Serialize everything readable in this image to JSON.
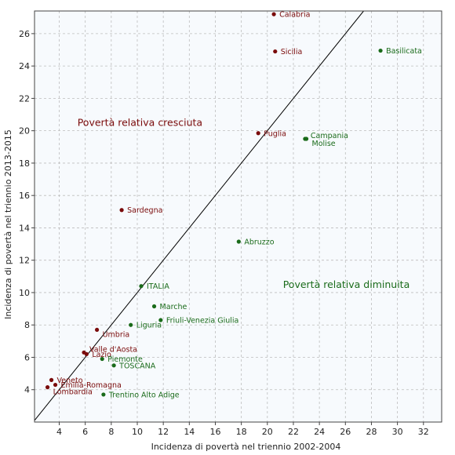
{
  "chart_data": {
    "type": "scatter",
    "title": "",
    "xlabel": "Incidenza di povertà nel triennio 2002-2004",
    "ylabel": "Incidenza di povertà nel triennio 2013-2015",
    "xlim": [
      2.1,
      33.4
    ],
    "ylim": [
      2.0,
      27.4
    ],
    "xticks": [
      4,
      6,
      8,
      10,
      12,
      14,
      16,
      18,
      20,
      22,
      24,
      26,
      28,
      30,
      32
    ],
    "yticks": [
      4,
      6,
      8,
      10,
      12,
      14,
      16,
      18,
      20,
      22,
      24,
      26
    ],
    "grid": true,
    "diagonal": {
      "from": [
        2.0,
        2.0
      ],
      "to": [
        27.4,
        27.4
      ]
    },
    "colors": {
      "increased": "#7a0b0b",
      "decreased": "#1a6b1a",
      "line": "#000000",
      "plot_bg": "#f7fafd",
      "grid": "#bdbdbd"
    },
    "points": [
      {
        "name": "Calabria",
        "x": 20.5,
        "y": 27.2,
        "group": "increased",
        "anchor": "right"
      },
      {
        "name": "Sicilia",
        "x": 20.6,
        "y": 24.9,
        "group": "increased",
        "anchor": "right"
      },
      {
        "name": "Basilicata",
        "x": 28.7,
        "y": 24.95,
        "group": "decreased",
        "anchor": "right"
      },
      {
        "name": "Puglia",
        "x": 19.3,
        "y": 19.85,
        "group": "increased",
        "anchor": "right"
      },
      {
        "name": "Campania",
        "x": 22.9,
        "y": 19.5,
        "group": "decreased",
        "anchor": "right-up"
      },
      {
        "name": "Molise",
        "x": 23.0,
        "y": 19.5,
        "group": "decreased",
        "anchor": "right-down"
      },
      {
        "name": "Sardegna",
        "x": 8.8,
        "y": 15.1,
        "group": "increased",
        "anchor": "right"
      },
      {
        "name": "Abruzzo",
        "x": 17.8,
        "y": 13.15,
        "group": "decreased",
        "anchor": "right"
      },
      {
        "name": "ITALIA",
        "x": 10.3,
        "y": 10.4,
        "group": "decreased",
        "anchor": "right"
      },
      {
        "name": "Marche",
        "x": 11.3,
        "y": 9.15,
        "group": "decreased",
        "anchor": "right"
      },
      {
        "name": "Friuli-Venezia Giulia",
        "x": 11.8,
        "y": 8.3,
        "group": "decreased",
        "anchor": "right"
      },
      {
        "name": "Liguria",
        "x": 9.5,
        "y": 8.0,
        "group": "decreased",
        "anchor": "right"
      },
      {
        "name": "Umbria",
        "x": 6.9,
        "y": 7.7,
        "group": "increased",
        "anchor": "right-down"
      },
      {
        "name": "Valle d'Aosta",
        "x": 5.9,
        "y": 6.3,
        "group": "increased",
        "anchor": "right-up"
      },
      {
        "name": "Lazio",
        "x": 6.1,
        "y": 6.2,
        "group": "increased",
        "anchor": "right"
      },
      {
        "name": "Piemonte",
        "x": 7.3,
        "y": 5.9,
        "group": "decreased",
        "anchor": "right"
      },
      {
        "name": "TOSCANA",
        "x": 8.2,
        "y": 5.5,
        "group": "decreased",
        "anchor": "right"
      },
      {
        "name": "Veneto",
        "x": 3.4,
        "y": 4.6,
        "group": "increased",
        "anchor": "right"
      },
      {
        "name": "Emilia-Romagna",
        "x": 3.7,
        "y": 4.3,
        "group": "increased",
        "anchor": "right"
      },
      {
        "name": "Lombardia",
        "x": 3.1,
        "y": 4.15,
        "group": "increased",
        "anchor": "right-down"
      },
      {
        "name": "Trentino Alto Adige",
        "x": 7.4,
        "y": 3.7,
        "group": "decreased",
        "anchor": "right"
      }
    ],
    "annotations": [
      {
        "text": "Povertà relativa cresciuta",
        "x": 5.4,
        "y": 20.3,
        "group": "increased"
      },
      {
        "text": "Povertà relativa diminuita",
        "x": 21.2,
        "y": 10.3,
        "group": "decreased"
      }
    ]
  }
}
